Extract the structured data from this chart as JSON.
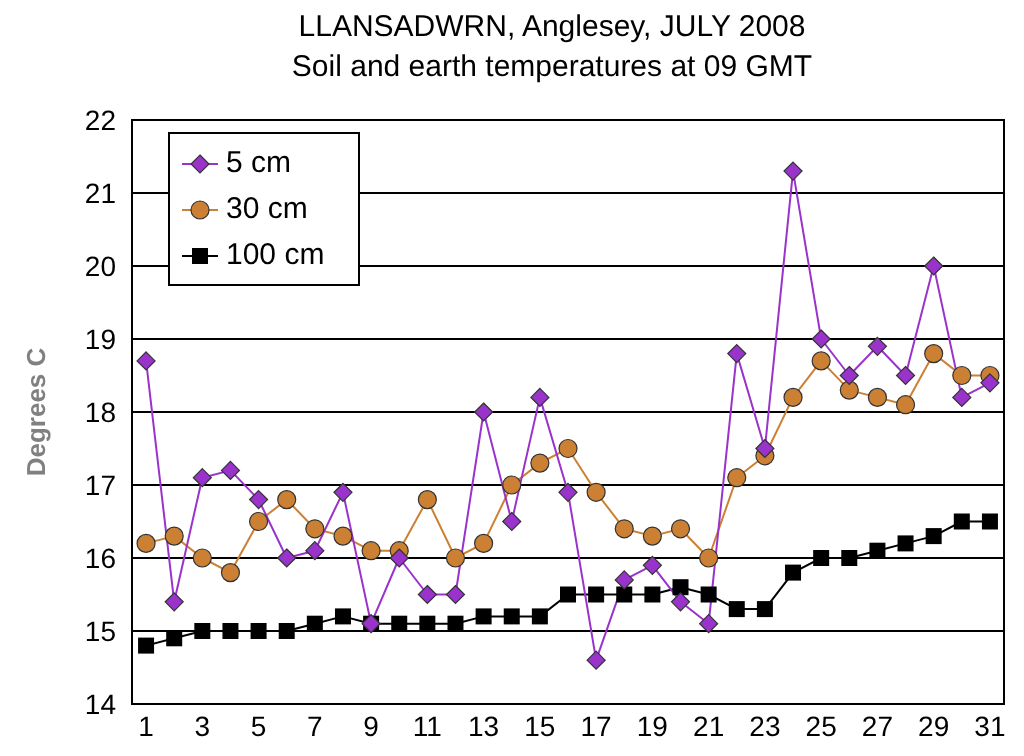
{
  "chart_data": {
    "type": "line",
    "title": "LLANSADWRN, Anglesey, JULY 2008",
    "subtitle": "Soil and earth temperatures at 09 GMT",
    "ylabel": "Degrees C",
    "x": [
      1,
      2,
      3,
      4,
      5,
      6,
      7,
      8,
      9,
      10,
      11,
      12,
      13,
      14,
      15,
      16,
      17,
      18,
      19,
      20,
      21,
      22,
      23,
      24,
      25,
      26,
      27,
      28,
      29,
      30,
      31
    ],
    "series": [
      {
        "name": "5 cm",
        "color": "#9933cc",
        "marker": "diamond",
        "values": [
          18.7,
          15.4,
          17.1,
          17.2,
          16.8,
          16.0,
          16.1,
          16.9,
          15.1,
          16.0,
          15.5,
          15.5,
          18.0,
          16.5,
          18.2,
          16.9,
          14.6,
          15.7,
          15.9,
          15.4,
          15.1,
          18.8,
          17.5,
          21.3,
          19.0,
          18.5,
          18.9,
          18.5,
          20.0,
          18.2,
          18.4
        ]
      },
      {
        "name": "30 cm",
        "color": "#cc8033",
        "marker": "circle",
        "values": [
          16.2,
          16.3,
          16.0,
          15.8,
          16.5,
          16.8,
          16.4,
          16.3,
          16.1,
          16.1,
          16.8,
          16.0,
          16.2,
          17.0,
          17.3,
          17.5,
          16.9,
          16.4,
          16.3,
          16.4,
          16.0,
          17.1,
          17.4,
          18.2,
          18.7,
          18.3,
          18.2,
          18.1,
          18.8,
          18.5,
          18.5
        ]
      },
      {
        "name": "100 cm",
        "color": "#000000",
        "marker": "square",
        "values": [
          14.8,
          14.9,
          15.0,
          15.0,
          15.0,
          15.0,
          15.1,
          15.2,
          15.1,
          15.1,
          15.1,
          15.1,
          15.2,
          15.2,
          15.2,
          15.5,
          15.5,
          15.5,
          15.5,
          15.6,
          15.5,
          15.3,
          15.3,
          15.8,
          16.0,
          16.0,
          16.1,
          16.2,
          16.3,
          16.5,
          16.5
        ]
      }
    ],
    "xlim": [
      0.5,
      31.5
    ],
    "xticks": [
      1,
      3,
      5,
      7,
      9,
      11,
      13,
      15,
      17,
      19,
      21,
      23,
      25,
      27,
      29,
      31
    ],
    "ylim": [
      14,
      22
    ],
    "yticks": [
      14,
      15,
      16,
      17,
      18,
      19,
      20,
      21,
      22
    ],
    "grid": "y",
    "legend": "top left"
  }
}
